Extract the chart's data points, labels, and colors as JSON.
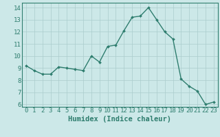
{
  "title": "",
  "xlabel": "Humidex (Indice chaleur)",
  "ylabel": "",
  "x": [
    0,
    1,
    2,
    3,
    4,
    5,
    6,
    7,
    8,
    9,
    10,
    11,
    12,
    13,
    14,
    15,
    16,
    17,
    18,
    19,
    20,
    21,
    22,
    23
  ],
  "y": [
    9.2,
    8.8,
    8.5,
    8.5,
    9.1,
    9.0,
    8.9,
    8.8,
    10.0,
    9.5,
    10.8,
    10.9,
    12.1,
    13.2,
    13.3,
    14.0,
    13.0,
    12.0,
    11.4,
    8.1,
    7.5,
    7.1,
    6.0,
    6.2
  ],
  "line_color": "#2e7d6e",
  "marker": "D",
  "marker_size": 2.0,
  "line_width": 1.0,
  "bg_color": "#cce8e8",
  "grid_color": "#aacccc",
  "tick_color": "#2e7d6e",
  "ylim": [
    5.8,
    14.4
  ],
  "yticks": [
    6,
    7,
    8,
    9,
    10,
    11,
    12,
    13,
    14
  ],
  "xlim": [
    -0.5,
    23.5
  ],
  "xticks": [
    0,
    1,
    2,
    3,
    4,
    5,
    6,
    7,
    8,
    9,
    10,
    11,
    12,
    13,
    14,
    15,
    16,
    17,
    18,
    19,
    20,
    21,
    22,
    23
  ],
  "xlabel_fontsize": 7.5,
  "tick_fontsize": 6.5
}
